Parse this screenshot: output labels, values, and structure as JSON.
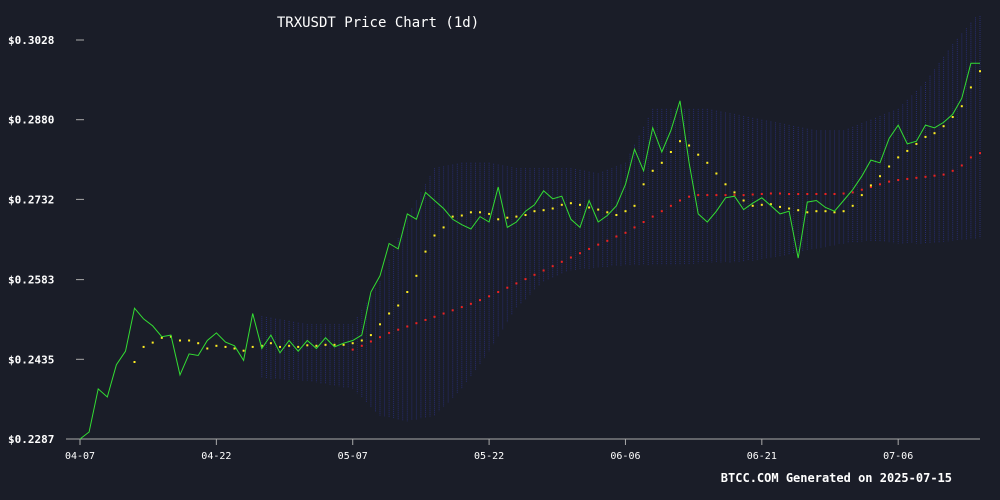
{
  "chart_data": {
    "type": "line",
    "title": "TRXUSDT Price Chart (1d)",
    "xlabel": "",
    "ylabel": "",
    "x_start": "2025-04-07",
    "x_end": "2025-07-15",
    "x_ticks": [
      {
        "date": "2025-04-07",
        "label": "04-07"
      },
      {
        "date": "2025-04-22",
        "label": "04-22"
      },
      {
        "date": "2025-05-07",
        "label": "05-07"
      },
      {
        "date": "2025-05-22",
        "label": "05-22"
      },
      {
        "date": "2025-06-06",
        "label": "06-06"
      },
      {
        "date": "2025-06-21",
        "label": "06-21"
      },
      {
        "date": "2025-07-06",
        "label": "07-06"
      }
    ],
    "y_ticks": [
      {
        "value": 0.3028,
        "label": "$0.3028"
      },
      {
        "value": 0.288,
        "label": "$0.2880"
      },
      {
        "value": 0.2732,
        "label": "$0.2732"
      },
      {
        "value": 0.2583,
        "label": "$0.2583"
      },
      {
        "value": 0.2435,
        "label": "$0.2435"
      },
      {
        "value": 0.2287,
        "label": "$0.2287"
      }
    ],
    "ylim": [
      0.2287,
      0.3028
    ],
    "grid": false,
    "legend": "none",
    "series": [
      {
        "role": "price",
        "color": "#33dd33",
        "style": "line",
        "x": [
          "2025-04-07",
          "2025-04-08",
          "2025-04-09",
          "2025-04-10",
          "2025-04-11",
          "2025-04-12",
          "2025-04-13",
          "2025-04-14",
          "2025-04-15",
          "2025-04-16",
          "2025-04-17",
          "2025-04-18",
          "2025-04-19",
          "2025-04-20",
          "2025-04-21",
          "2025-04-22",
          "2025-04-23",
          "2025-04-24",
          "2025-04-25",
          "2025-04-26",
          "2025-04-27",
          "2025-04-28",
          "2025-04-29",
          "2025-04-30",
          "2025-05-01",
          "2025-05-02",
          "2025-05-03",
          "2025-05-04",
          "2025-05-05",
          "2025-05-06",
          "2025-05-07",
          "2025-05-08",
          "2025-05-09",
          "2025-05-10",
          "2025-05-11",
          "2025-05-12",
          "2025-05-13",
          "2025-05-14",
          "2025-05-15",
          "2025-05-16",
          "2025-05-17",
          "2025-05-18",
          "2025-05-19",
          "2025-05-20",
          "2025-05-21",
          "2025-05-22",
          "2025-05-23",
          "2025-05-24",
          "2025-05-25",
          "2025-05-26",
          "2025-05-27",
          "2025-05-28",
          "2025-05-29",
          "2025-05-30",
          "2025-05-31",
          "2025-06-01",
          "2025-06-02",
          "2025-06-03",
          "2025-06-04",
          "2025-06-05",
          "2025-06-06",
          "2025-06-07",
          "2025-06-08",
          "2025-06-09",
          "2025-06-10",
          "2025-06-11",
          "2025-06-12",
          "2025-06-13",
          "2025-06-14",
          "2025-06-15",
          "2025-06-16",
          "2025-06-17",
          "2025-06-18",
          "2025-06-19",
          "2025-06-20",
          "2025-06-21",
          "2025-06-22",
          "2025-06-23",
          "2025-06-24",
          "2025-06-25",
          "2025-06-26",
          "2025-06-27",
          "2025-06-28",
          "2025-06-29",
          "2025-06-30",
          "2025-07-01",
          "2025-07-02",
          "2025-07-03",
          "2025-07-04",
          "2025-07-05",
          "2025-07-06",
          "2025-07-07",
          "2025-07-08",
          "2025-07-09",
          "2025-07-10",
          "2025-07-11",
          "2025-07-12",
          "2025-07-13",
          "2025-07-14",
          "2025-07-15"
        ],
        "y": [
          0.2287,
          0.23,
          0.238,
          0.2365,
          0.2425,
          0.245,
          0.253,
          0.251,
          0.2497,
          0.2477,
          0.248,
          0.2406,
          0.2445,
          0.2442,
          0.247,
          0.2484,
          0.2467,
          0.246,
          0.2433,
          0.252,
          0.2455,
          0.248,
          0.2447,
          0.247,
          0.245,
          0.247,
          0.2455,
          0.2475,
          0.2458,
          0.2465,
          0.247,
          0.248,
          0.256,
          0.259,
          0.265,
          0.264,
          0.2705,
          0.2695,
          0.2745,
          0.273,
          0.2715,
          0.2695,
          0.2685,
          0.2677,
          0.27,
          0.269,
          0.2755,
          0.268,
          0.269,
          0.271,
          0.2722,
          0.2748,
          0.2733,
          0.2738,
          0.2695,
          0.268,
          0.273,
          0.269,
          0.2702,
          0.272,
          0.276,
          0.2825,
          0.2785,
          0.2865,
          0.282,
          0.286,
          0.2915,
          0.28,
          0.2705,
          0.269,
          0.271,
          0.2735,
          0.2738,
          0.2713,
          0.2725,
          0.2735,
          0.272,
          0.2705,
          0.271,
          0.2623,
          0.2727,
          0.273,
          0.2717,
          0.271,
          0.273,
          0.275,
          0.2775,
          0.2805,
          0.28,
          0.2845,
          0.287,
          0.2835,
          0.284,
          0.287,
          0.2865,
          0.2875,
          0.289,
          0.292,
          0.2985,
          0.2985
        ]
      },
      {
        "role": "short-ma",
        "color": "#ffee22",
        "style": "dots",
        "x": [
          "2025-04-13",
          "2025-04-14",
          "2025-04-15",
          "2025-04-16",
          "2025-04-17",
          "2025-04-18",
          "2025-04-19",
          "2025-04-20",
          "2025-04-21",
          "2025-04-22",
          "2025-04-23",
          "2025-04-24",
          "2025-04-25",
          "2025-04-26",
          "2025-04-27",
          "2025-04-28",
          "2025-04-29",
          "2025-04-30",
          "2025-05-01",
          "2025-05-02",
          "2025-05-03",
          "2025-05-04",
          "2025-05-05",
          "2025-05-06",
          "2025-05-07",
          "2025-05-08",
          "2025-05-09",
          "2025-05-10",
          "2025-05-11",
          "2025-05-12",
          "2025-05-13",
          "2025-05-14",
          "2025-05-15",
          "2025-05-16",
          "2025-05-17",
          "2025-05-18",
          "2025-05-19",
          "2025-05-20",
          "2025-05-21",
          "2025-05-22",
          "2025-05-23",
          "2025-05-24",
          "2025-05-25",
          "2025-05-26",
          "2025-05-27",
          "2025-05-28",
          "2025-05-29",
          "2025-05-30",
          "2025-05-31",
          "2025-06-01",
          "2025-06-02",
          "2025-06-03",
          "2025-06-04",
          "2025-06-05",
          "2025-06-06",
          "2025-06-07",
          "2025-06-08",
          "2025-06-09",
          "2025-06-10",
          "2025-06-11",
          "2025-06-12",
          "2025-06-13",
          "2025-06-14",
          "2025-06-15",
          "2025-06-16",
          "2025-06-17",
          "2025-06-18",
          "2025-06-19",
          "2025-06-20",
          "2025-06-21",
          "2025-06-22",
          "2025-06-23",
          "2025-06-24",
          "2025-06-25",
          "2025-06-26",
          "2025-06-27",
          "2025-06-28",
          "2025-06-29",
          "2025-06-30",
          "2025-07-01",
          "2025-07-02",
          "2025-07-03",
          "2025-07-04",
          "2025-07-05",
          "2025-07-06",
          "2025-07-07",
          "2025-07-08",
          "2025-07-09",
          "2025-07-10",
          "2025-07-11",
          "2025-07-12",
          "2025-07-13",
          "2025-07-14",
          "2025-07-15"
        ],
        "y": [
          0.243,
          0.2458,
          0.2466,
          0.2475,
          0.2477,
          0.247,
          0.247,
          0.2465,
          0.2455,
          0.246,
          0.2458,
          0.2455,
          0.2451,
          0.2458,
          0.246,
          0.2465,
          0.2458,
          0.246,
          0.2458,
          0.2461,
          0.246,
          0.2462,
          0.2462,
          0.2462,
          0.2465,
          0.247,
          0.248,
          0.25,
          0.252,
          0.2535,
          0.256,
          0.259,
          0.2635,
          0.2665,
          0.268,
          0.27,
          0.2702,
          0.2708,
          0.2708,
          0.2705,
          0.2695,
          0.2698,
          0.27,
          0.2703,
          0.271,
          0.2712,
          0.2715,
          0.2722,
          0.2725,
          0.2722,
          0.2717,
          0.2713,
          0.2708,
          0.2703,
          0.271,
          0.272,
          0.276,
          0.2785,
          0.28,
          0.282,
          0.284,
          0.2832,
          0.2815,
          0.28,
          0.278,
          0.276,
          0.2745,
          0.273,
          0.272,
          0.2722,
          0.2723,
          0.2718,
          0.2715,
          0.2712,
          0.2708,
          0.271,
          0.271,
          0.2708,
          0.271,
          0.272,
          0.274,
          0.2758,
          0.2775,
          0.2793,
          0.281,
          0.2822,
          0.2835,
          0.2848,
          0.2855,
          0.2868,
          0.2885,
          0.2905,
          0.294,
          0.297
        ]
      },
      {
        "role": "long-ma",
        "color": "#ee2222",
        "style": "dots",
        "x": [
          "2025-05-07",
          "2025-05-08",
          "2025-05-09",
          "2025-05-10",
          "2025-05-11",
          "2025-05-12",
          "2025-05-13",
          "2025-05-14",
          "2025-05-15",
          "2025-05-16",
          "2025-05-17",
          "2025-05-18",
          "2025-05-19",
          "2025-05-20",
          "2025-05-21",
          "2025-05-22",
          "2025-05-23",
          "2025-05-24",
          "2025-05-25",
          "2025-05-26",
          "2025-05-27",
          "2025-05-28",
          "2025-05-29",
          "2025-05-30",
          "2025-05-31",
          "2025-06-01",
          "2025-06-02",
          "2025-06-03",
          "2025-06-04",
          "2025-06-05",
          "2025-06-06",
          "2025-06-07",
          "2025-06-08",
          "2025-06-09",
          "2025-06-10",
          "2025-06-11",
          "2025-06-12",
          "2025-06-13",
          "2025-06-14",
          "2025-06-15",
          "2025-06-16",
          "2025-06-17",
          "2025-06-18",
          "2025-06-19",
          "2025-06-20",
          "2025-06-21",
          "2025-06-22",
          "2025-06-23",
          "2025-06-24",
          "2025-06-25",
          "2025-06-26",
          "2025-06-27",
          "2025-06-28",
          "2025-06-29",
          "2025-06-30",
          "2025-07-01",
          "2025-07-02",
          "2025-07-03",
          "2025-07-04",
          "2025-07-05",
          "2025-07-06",
          "2025-07-07",
          "2025-07-08",
          "2025-07-09",
          "2025-07-10",
          "2025-07-11",
          "2025-07-12",
          "2025-07-13",
          "2025-07-14",
          "2025-07-15"
        ],
        "y": [
          0.2453,
          0.246,
          0.2468,
          0.2476,
          0.2484,
          0.249,
          0.2496,
          0.2502,
          0.2508,
          0.2514,
          0.252,
          0.2526,
          0.2532,
          0.2538,
          0.2545,
          0.2552,
          0.256,
          0.2568,
          0.2576,
          0.2584,
          0.2592,
          0.26,
          0.2608,
          0.2616,
          0.2624,
          0.2632,
          0.264,
          0.2648,
          0.2655,
          0.2663,
          0.267,
          0.268,
          0.269,
          0.27,
          0.271,
          0.272,
          0.273,
          0.2737,
          0.274,
          0.274,
          0.274,
          0.274,
          0.274,
          0.274,
          0.2741,
          0.2742,
          0.2743,
          0.2743,
          0.2742,
          0.2742,
          0.2742,
          0.2742,
          0.2742,
          0.2742,
          0.2743,
          0.2745,
          0.275,
          0.2755,
          0.276,
          0.2765,
          0.2768,
          0.277,
          0.2772,
          0.2774,
          0.2776,
          0.2778,
          0.2785,
          0.2795,
          0.281,
          0.2818
        ]
      }
    ],
    "band": {
      "role": "bollinger",
      "color": "#262c6e",
      "x": [
        "2025-04-27",
        "2025-05-02",
        "2025-05-07",
        "2025-05-10",
        "2025-05-13",
        "2025-05-16",
        "2025-05-19",
        "2025-05-22",
        "2025-05-25",
        "2025-05-28",
        "2025-05-31",
        "2025-06-03",
        "2025-06-06",
        "2025-06-09",
        "2025-06-12",
        "2025-06-15",
        "2025-06-18",
        "2025-06-21",
        "2025-06-24",
        "2025-06-27",
        "2025-06-30",
        "2025-07-03",
        "2025-07-06",
        "2025-07-09",
        "2025-07-12",
        "2025-07-15"
      ],
      "upper": [
        0.2515,
        0.25,
        0.25,
        0.258,
        0.27,
        0.279,
        0.28,
        0.28,
        0.279,
        0.279,
        0.279,
        0.278,
        0.28,
        0.29,
        0.29,
        0.29,
        0.289,
        0.288,
        0.287,
        0.286,
        0.286,
        0.288,
        0.29,
        0.295,
        0.302,
        0.308
      ],
      "lower": [
        0.24,
        0.2395,
        0.238,
        0.233,
        0.232,
        0.233,
        0.238,
        0.245,
        0.253,
        0.258,
        0.26,
        0.2605,
        0.261,
        0.261,
        0.261,
        0.2615,
        0.2615,
        0.262,
        0.263,
        0.264,
        0.265,
        0.2655,
        0.265,
        0.265,
        0.2655,
        0.266
      ]
    }
  },
  "footer": {
    "brand": "BTCC.COM",
    "generated": "Generated on 2025-07-15"
  },
  "colors": {
    "background": "#1a1d28",
    "text": "#ffffff",
    "axis": "#aaaaaa"
  }
}
